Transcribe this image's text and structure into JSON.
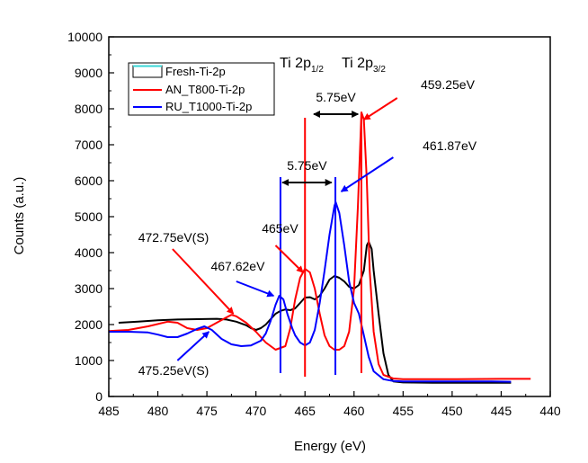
{
  "chart_data": {
    "type": "line",
    "title": "",
    "xlabel": "Energy (eV)",
    "ylabel": "Counts (a.u.)",
    "xlim": [
      485,
      440
    ],
    "ylim": [
      0,
      10000
    ],
    "x_ticks": [
      "485",
      "480",
      "475",
      "470",
      "465",
      "460",
      "455",
      "450",
      "445",
      "440"
    ],
    "y_ticks": [
      "0",
      "1000",
      "2000",
      "3000",
      "4000",
      "5000",
      "6000",
      "7000",
      "8000",
      "9000",
      "10000"
    ],
    "grid": false,
    "legend_position": "top-left",
    "series": [
      {
        "name": "Fresh-Ti-2p",
        "legend_swatch": "#38d6d6",
        "color": "#000000",
        "points": [
          [
            484,
            2050
          ],
          [
            482,
            2080
          ],
          [
            480,
            2120
          ],
          [
            478,
            2140
          ],
          [
            476,
            2150
          ],
          [
            474,
            2160
          ],
          [
            473,
            2140
          ],
          [
            472,
            2080
          ],
          [
            471,
            1980
          ],
          [
            470.5,
            1900
          ],
          [
            470,
            1850
          ],
          [
            469.5,
            1900
          ],
          [
            469,
            2000
          ],
          [
            468.5,
            2150
          ],
          [
            468,
            2300
          ],
          [
            467.5,
            2380
          ],
          [
            467,
            2420
          ],
          [
            466.5,
            2400
          ],
          [
            466,
            2450
          ],
          [
            465.5,
            2600
          ],
          [
            465,
            2750
          ],
          [
            464.5,
            2760
          ],
          [
            464,
            2700
          ],
          [
            463.5,
            2800
          ],
          [
            463,
            3000
          ],
          [
            462.5,
            3250
          ],
          [
            462,
            3350
          ],
          [
            461.5,
            3300
          ],
          [
            461,
            3200
          ],
          [
            460.5,
            3050
          ],
          [
            460,
            3000
          ],
          [
            459.5,
            3100
          ],
          [
            459,
            3500
          ],
          [
            458.7,
            4200
          ],
          [
            458.5,
            4300
          ],
          [
            458.2,
            4100
          ],
          [
            458,
            3500
          ],
          [
            457.5,
            2300
          ],
          [
            457,
            1200
          ],
          [
            456.5,
            600
          ],
          [
            456,
            420
          ],
          [
            455,
            390
          ],
          [
            452,
            380
          ],
          [
            448,
            380
          ],
          [
            445,
            380
          ],
          [
            444,
            380
          ]
        ]
      },
      {
        "name": "AN_T800-Ti-2p",
        "legend_swatch": "#ff0000",
        "color": "#ff0000",
        "points": [
          [
            485,
            1820
          ],
          [
            483,
            1850
          ],
          [
            481,
            1950
          ],
          [
            479,
            2080
          ],
          [
            478,
            2050
          ],
          [
            477,
            1900
          ],
          [
            476,
            1850
          ],
          [
            475,
            1900
          ],
          [
            474,
            2050
          ],
          [
            473,
            2200
          ],
          [
            472.5,
            2270
          ],
          [
            472,
            2230
          ],
          [
            471,
            2050
          ],
          [
            470,
            1800
          ],
          [
            469,
            1500
          ],
          [
            468,
            1300
          ],
          [
            467,
            1400
          ],
          [
            466.5,
            1900
          ],
          [
            466,
            2700
          ],
          [
            465.5,
            3300
          ],
          [
            465,
            3550
          ],
          [
            464.5,
            3450
          ],
          [
            464,
            3000
          ],
          [
            463.5,
            2300
          ],
          [
            463,
            1700
          ],
          [
            462.5,
            1400
          ],
          [
            462,
            1300
          ],
          [
            461.5,
            1300
          ],
          [
            461,
            1400
          ],
          [
            460.5,
            1800
          ],
          [
            460,
            3000
          ],
          [
            459.6,
            5300
          ],
          [
            459.25,
            7900
          ],
          [
            459,
            7700
          ],
          [
            458.7,
            6000
          ],
          [
            458.4,
            3500
          ],
          [
            458,
            1800
          ],
          [
            457.5,
            900
          ],
          [
            457,
            600
          ],
          [
            456,
            500
          ],
          [
            455,
            480
          ],
          [
            450,
            480
          ],
          [
            445,
            490
          ],
          [
            442,
            490
          ]
        ]
      },
      {
        "name": "RU_T1000-Ti-2p",
        "legend_swatch": "#0000ff",
        "color": "#0000ff",
        "points": [
          [
            485,
            1800
          ],
          [
            483,
            1800
          ],
          [
            481,
            1780
          ],
          [
            480,
            1720
          ],
          [
            479,
            1650
          ],
          [
            478,
            1650
          ],
          [
            477,
            1750
          ],
          [
            476,
            1880
          ],
          [
            475.25,
            1950
          ],
          [
            474.5,
            1850
          ],
          [
            473.5,
            1600
          ],
          [
            472.5,
            1450
          ],
          [
            471.5,
            1400
          ],
          [
            470.5,
            1420
          ],
          [
            469.5,
            1550
          ],
          [
            469,
            1750
          ],
          [
            468.5,
            2100
          ],
          [
            468,
            2550
          ],
          [
            467.62,
            2800
          ],
          [
            467.2,
            2700
          ],
          [
            466.8,
            2300
          ],
          [
            466.3,
            1900
          ],
          [
            466,
            1700
          ],
          [
            465.5,
            1500
          ],
          [
            465,
            1420
          ],
          [
            464.5,
            1500
          ],
          [
            464,
            1850
          ],
          [
            463.5,
            2600
          ],
          [
            463,
            3500
          ],
          [
            462.5,
            4500
          ],
          [
            462,
            5300
          ],
          [
            461.87,
            5400
          ],
          [
            461.5,
            5100
          ],
          [
            461,
            4200
          ],
          [
            460.5,
            3200
          ],
          [
            460,
            2600
          ],
          [
            459.5,
            2300
          ],
          [
            459,
            1700
          ],
          [
            458.5,
            1100
          ],
          [
            458,
            700
          ],
          [
            457,
            480
          ],
          [
            456,
            430
          ],
          [
            455,
            420
          ],
          [
            450,
            420
          ],
          [
            446,
            420
          ],
          [
            444,
            410
          ]
        ]
      }
    ],
    "vlines": [
      {
        "x": 467.5,
        "color": "#0000ff",
        "top": 6100,
        "bottom": 650
      },
      {
        "x": 465.0,
        "color": "#ff0000",
        "top": 7750,
        "bottom": 550
      },
      {
        "x": 461.9,
        "color": "#0000ff",
        "top": 6100,
        "bottom": 600
      },
      {
        "x": 459.25,
        "color": "#ff0000",
        "top": 7900,
        "bottom": 650
      }
    ],
    "peak_labels": {
      "ti_2p1_main": "Ti 2p",
      "ti_2p1_sub": "1/2",
      "ti_2p3_main": "Ti 2p",
      "ti_2p3_sub": "3/2"
    },
    "splittings": [
      {
        "label": "5.75eV",
        "from": 464.1,
        "to": 459.6,
        "y": 7850
      },
      {
        "label": "5.75eV",
        "from": 467.3,
        "to": 462.3,
        "y": 5950
      }
    ],
    "annotations": [
      {
        "text": "459.25eV",
        "color": "#ff0000",
        "tx": 453.2,
        "ty": 8550,
        "ax1": 455.6,
        "ay1": 8300,
        "ax2": 459.0,
        "ay2": 7700
      },
      {
        "text": "461.87eV",
        "color": "#0000ff",
        "tx": 453.0,
        "ty": 6850,
        "ax1": 456.0,
        "ay1": 6650,
        "ax2": 461.3,
        "ay2": 5700
      },
      {
        "text": "465eV",
        "color": "#ff0000",
        "tx": 469.4,
        "ty": 4550,
        "ax1": 468.0,
        "ay1": 4200,
        "ax2": 465.2,
        "ay2": 3450
      },
      {
        "text": "467.62eV",
        "color": "#0000ff",
        "tx": 474.6,
        "ty": 3500,
        "ax1": 472.0,
        "ay1": 3200,
        "ax2": 468.2,
        "ay2": 2800
      },
      {
        "text": "472.75eV(S)",
        "color": "#ff0000",
        "tx": 482.0,
        "ty": 4300,
        "ax1": 478.5,
        "ay1": 4100,
        "ax2": 472.3,
        "ay2": 2300
      },
      {
        "text": "475.25eV(S)",
        "color": "#0000ff",
        "tx": 482.0,
        "ty": 600,
        "ax1": 478.0,
        "ay1": 1000,
        "ax2": 474.8,
        "ay2": 1800
      }
    ]
  }
}
